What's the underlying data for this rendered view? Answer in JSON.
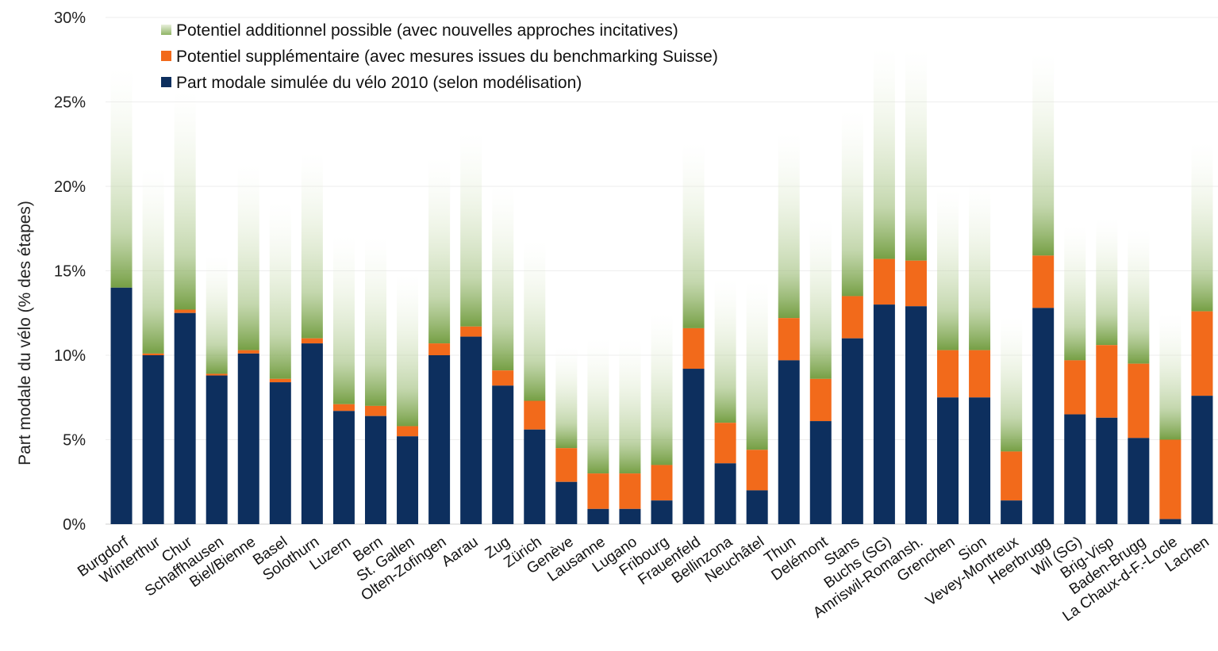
{
  "chart_data": {
    "type": "bar",
    "stacked": true,
    "title": "",
    "xlabel": "",
    "ylabel": "Part modale du vélo (% des étapes)",
    "ylim": [
      0,
      30
    ],
    "y_ticks": [
      "0%",
      "5%",
      "10%",
      "15%",
      "20%",
      "25%",
      "30%"
    ],
    "legend_position": "top-left",
    "grid": false,
    "categories": [
      "Burgdorf",
      "Winterthur",
      "Chur",
      "Schaffhausen",
      "Biel/Bienne",
      "Basel",
      "Solothurn",
      "Luzern",
      "Bern",
      "St. Gallen",
      "Olten-Zofingen",
      "Aarau",
      "Zug",
      "Zürich",
      "Genève",
      "Lausanne",
      "Lugano",
      "Fribourg",
      "Frauenfeld",
      "Bellinzona",
      "Neuchâtel",
      "Thun",
      "Delémont",
      "Stans",
      "Buchs (SG)",
      "Amriswil-Romansh.",
      "Grenchen",
      "Sion",
      "Vevey-Montreux",
      "Heerbrugg",
      "Wil (SG)",
      "Brig-Visp",
      "Baden-Brugg",
      "La Chaux-d-F.-Locle",
      "Lachen"
    ],
    "series": [
      {
        "name": "Part modale simulée du vélo 2010 (selon modélisation)",
        "color": "#0d2f5e",
        "values": [
          14.0,
          10.0,
          12.5,
          8.8,
          10.1,
          8.4,
          10.7,
          6.7,
          6.4,
          5.2,
          10.0,
          11.1,
          8.2,
          5.6,
          2.5,
          0.9,
          0.9,
          1.4,
          9.2,
          3.6,
          2.0,
          9.7,
          6.1,
          11.0,
          13.0,
          12.9,
          7.5,
          7.5,
          1.4,
          12.8,
          6.5,
          6.3,
          5.1,
          0.3,
          7.6
        ]
      },
      {
        "name": "Potentiel supplémentaire (avec mesures issues du benchmarking Suisse)",
        "color": "#f26a1b",
        "values": [
          0.0,
          0.1,
          0.2,
          0.1,
          0.2,
          0.2,
          0.3,
          0.4,
          0.6,
          0.6,
          0.7,
          0.6,
          0.9,
          1.7,
          2.0,
          2.1,
          2.1,
          2.1,
          2.4,
          2.4,
          2.4,
          2.5,
          2.5,
          2.5,
          2.7,
          2.7,
          2.8,
          2.8,
          2.9,
          3.1,
          3.2,
          4.3,
          4.4,
          4.7,
          5.0
        ]
      },
      {
        "name": "Potentiel additionnel possible (avec nouvelles approches incitatives)",
        "color": "#6e9a3a",
        "values": [
          13.0,
          11.0,
          13.0,
          7.0,
          11.0,
          10.5,
          11.0,
          10.0,
          10.0,
          9.0,
          11.0,
          11.5,
          11.0,
          9.5,
          6.0,
          8.0,
          8.0,
          9.0,
          11.0,
          8.5,
          10.0,
          11.0,
          9.5,
          11.0,
          12.5,
          12.5,
          9.5,
          10.0,
          8.0,
          12.0,
          8.0,
          7.5,
          8.0,
          7.5,
          10.0
        ]
      }
    ]
  }
}
